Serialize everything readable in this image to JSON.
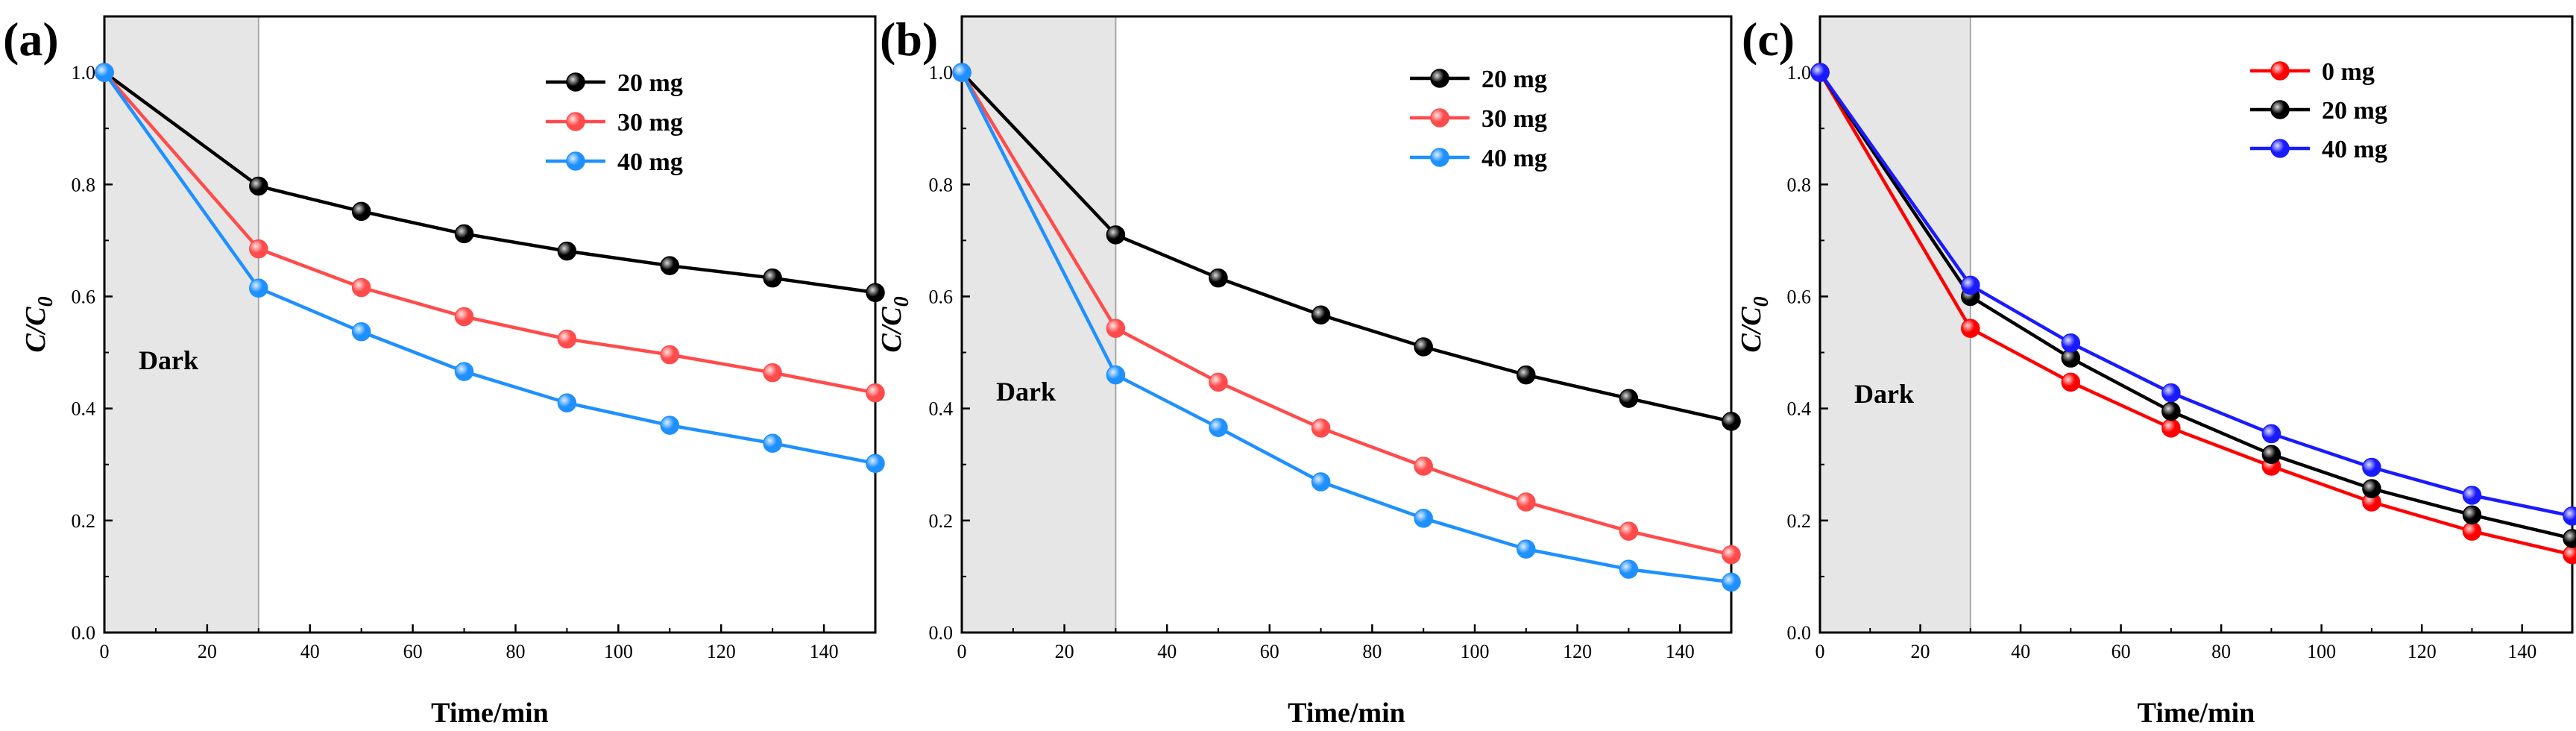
{
  "chart_data": [
    {
      "type": "line",
      "panel_label": "(a)",
      "x": [
        0,
        30,
        50,
        70,
        90,
        110,
        130,
        150
      ],
      "series": [
        {
          "name": "20 mg",
          "color": "#000000",
          "values": [
            1.0,
            0.797,
            0.752,
            0.712,
            0.681,
            0.655,
            0.633,
            0.607
          ]
        },
        {
          "name": "30 mg",
          "color": "#ff4b4b",
          "values": [
            1.0,
            0.685,
            0.616,
            0.564,
            0.524,
            0.496,
            0.464,
            0.428
          ]
        },
        {
          "name": "40 mg",
          "color": "#1e90ff",
          "values": [
            1.0,
            0.615,
            0.537,
            0.466,
            0.41,
            0.37,
            0.338,
            0.302
          ]
        }
      ],
      "xlabel": "Time/min",
      "ylabel": "C/C0",
      "ylabel_main": "C/C",
      "ylabel_sub": "0",
      "xlim": [
        0,
        150
      ],
      "ylim": [
        0.0,
        1.1
      ],
      "xticks": [
        "0",
        "20",
        "40",
        "60",
        "80",
        "100",
        "120",
        "140"
      ],
      "yticks": [
        "0.0",
        "0.2",
        "0.4",
        "0.6",
        "0.8",
        "1.0"
      ],
      "shaded_region": {
        "from": 0,
        "to": 30,
        "label": "Dark"
      },
      "legend_position": "top-right"
    },
    {
      "type": "line",
      "panel_label": "(b)",
      "x": [
        0,
        30,
        50,
        70,
        90,
        110,
        130,
        150
      ],
      "series": [
        {
          "name": "20 mg",
          "color": "#000000",
          "values": [
            1.0,
            0.71,
            0.633,
            0.567,
            0.51,
            0.46,
            0.418,
            0.377
          ]
        },
        {
          "name": "30 mg",
          "color": "#ff4b4b",
          "values": [
            1.0,
            0.543,
            0.447,
            0.365,
            0.297,
            0.233,
            0.181,
            0.139
          ]
        },
        {
          "name": "40 mg",
          "color": "#1e90ff",
          "values": [
            1.0,
            0.46,
            0.366,
            0.269,
            0.204,
            0.149,
            0.113,
            0.09
          ]
        }
      ],
      "xlabel": "Time/min",
      "ylabel": "C/C0",
      "ylabel_main": "C/C",
      "ylabel_sub": "0",
      "xlim": [
        0,
        150
      ],
      "ylim": [
        0.0,
        1.1
      ],
      "xticks": [
        "0",
        "20",
        "40",
        "60",
        "80",
        "100",
        "120",
        "140"
      ],
      "yticks": [
        "0.0",
        "0.2",
        "0.4",
        "0.6",
        "0.8",
        "1.0"
      ],
      "shaded_region": {
        "from": 0,
        "to": 30,
        "label": "Dark"
      },
      "legend_position": "top-right"
    },
    {
      "type": "line",
      "panel_label": "(c)",
      "x": [
        0,
        30,
        50,
        70,
        90,
        110,
        130,
        150
      ],
      "series": [
        {
          "name": "0 mg",
          "color": "#ff0000",
          "values": [
            1.0,
            0.543,
            0.447,
            0.365,
            0.297,
            0.233,
            0.181,
            0.139
          ]
        },
        {
          "name": "20 mg",
          "color": "#000000",
          "values": [
            1.0,
            0.6,
            0.49,
            0.395,
            0.318,
            0.257,
            0.21,
            0.168
          ]
        },
        {
          "name": "40 mg",
          "color": "#1a1aff",
          "values": [
            1.0,
            0.62,
            0.517,
            0.428,
            0.355,
            0.295,
            0.245,
            0.208
          ]
        }
      ],
      "xlabel": "Time/min",
      "ylabel": "C/C0",
      "ylabel_main": "C/C",
      "ylabel_sub": "0",
      "xlim": [
        0,
        150
      ],
      "ylim": [
        0.0,
        1.1
      ],
      "xticks": [
        "0",
        "20",
        "40",
        "60",
        "80",
        "100",
        "120",
        "140"
      ],
      "yticks": [
        "0.0",
        "0.2",
        "0.4",
        "0.6",
        "0.8",
        "1.0"
      ],
      "shaded_region": {
        "from": 0,
        "to": 30,
        "label": "Dark"
      },
      "legend_position": "top-right"
    }
  ]
}
